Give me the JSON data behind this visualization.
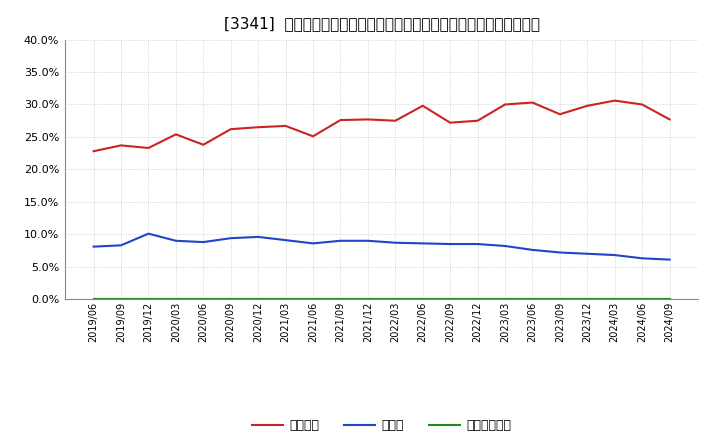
{
  "title": "[3341]  自己資本、のれん、繰延税金資産の総資産に対する比率の推移",
  "x_labels": [
    "2019/06",
    "2019/09",
    "2019/12",
    "2020/03",
    "2020/06",
    "2020/09",
    "2020/12",
    "2021/03",
    "2021/06",
    "2021/09",
    "2021/12",
    "2022/03",
    "2022/06",
    "2022/09",
    "2022/12",
    "2023/03",
    "2023/06",
    "2023/09",
    "2023/12",
    "2024/03",
    "2024/06",
    "2024/09"
  ],
  "equity": [
    0.228,
    0.237,
    0.233,
    0.254,
    0.238,
    0.262,
    0.265,
    0.267,
    0.251,
    0.276,
    0.277,
    0.275,
    0.298,
    0.272,
    0.275,
    0.3,
    0.303,
    0.285,
    0.298,
    0.306,
    0.3,
    0.277
  ],
  "goodwill": [
    0.081,
    0.083,
    0.101,
    0.09,
    0.088,
    0.094,
    0.096,
    0.091,
    0.086,
    0.09,
    0.09,
    0.087,
    0.086,
    0.085,
    0.085,
    0.082,
    0.076,
    0.072,
    0.07,
    0.068,
    0.063,
    0.061
  ],
  "deferred_tax": [
    0.001,
    0.001,
    0.001,
    0.001,
    0.001,
    0.001,
    0.001,
    0.001,
    0.001,
    0.001,
    0.001,
    0.001,
    0.001,
    0.001,
    0.001,
    0.001,
    0.001,
    0.001,
    0.001,
    0.001,
    0.001,
    0.001
  ],
  "equity_color": "#cc2222",
  "goodwill_color": "#2244cc",
  "deferred_tax_color": "#228822",
  "background_color": "#ffffff",
  "plot_bg_color": "#ffffff",
  "grid_color": "#bbbbbb",
  "ylim": [
    0.0,
    0.4
  ],
  "yticks": [
    0.0,
    0.05,
    0.1,
    0.15,
    0.2,
    0.25,
    0.3,
    0.35,
    0.4
  ],
  "legend_labels": [
    "自己資本",
    "のれん",
    "繰延税金資産"
  ],
  "line_width": 1.5
}
